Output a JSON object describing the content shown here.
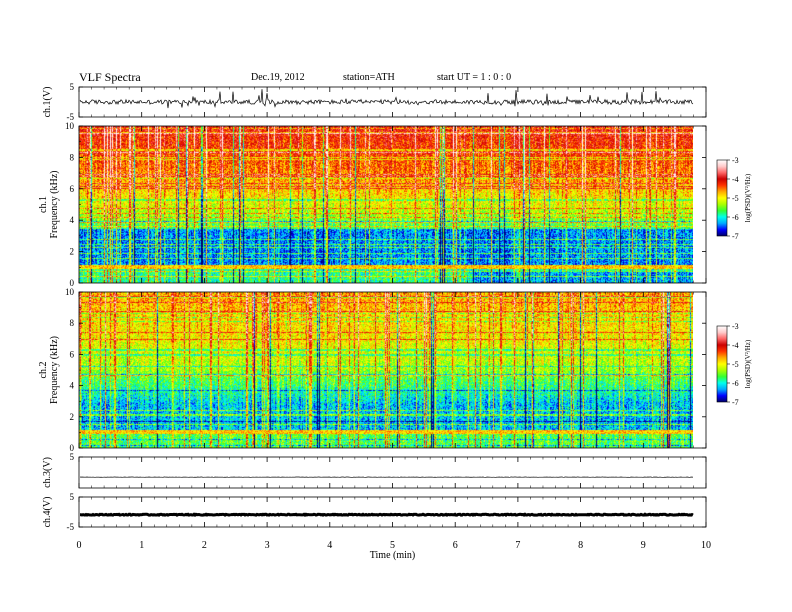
{
  "header": {
    "title": "VLF  Spectra",
    "date": "Dec.19, 2012",
    "station": "station=ATH",
    "start": "start  UT  =   1 : 0  : 0"
  },
  "colors": {
    "colormap": [
      "#000066",
      "#0000ff",
      "#00aaff",
      "#00ffee",
      "#33ff33",
      "#aaff00",
      "#ffff00",
      "#ffaa00",
      "#ff3300",
      "#cc0000",
      "#ff6666",
      "#ffcccc",
      "#ffffff"
    ]
  },
  "chart_data": [
    {
      "type": "line",
      "name": "ch1-waveform",
      "ylabel": "ch.1(V)",
      "ylim": [
        -5,
        5
      ],
      "yticks": [
        "5",
        "-5"
      ],
      "x_range_min": [
        0,
        9.8
      ],
      "approx_level_V": 0,
      "approx_amplitude_V": 1.5
    },
    {
      "type": "heatmap",
      "name": "ch1-spectrogram",
      "ylabel": "ch.1\nFrequency  (kHz)",
      "ylim": [
        0,
        10
      ],
      "yticks": [
        "0",
        "2",
        "4",
        "6",
        "8",
        "10"
      ],
      "x_range_min": [
        0,
        9.8
      ],
      "colorbar": {
        "label": "log(PSD)(V²/Hz)",
        "range": [
          -7,
          -3
        ],
        "ticks": [
          "-3",
          "-4",
          "-5",
          "-6",
          "-7"
        ]
      }
    },
    {
      "type": "heatmap",
      "name": "ch2-spectrogram",
      "ylabel": "ch.2\nFrequency  (kHz)",
      "ylim": [
        0,
        10
      ],
      "yticks": [
        "0",
        "2",
        "4",
        "6",
        "8",
        "10"
      ],
      "x_range_min": [
        0,
        9.8
      ],
      "colorbar": {
        "label": "log(PSD)(V²/Hz)",
        "range": [
          -7,
          -3
        ],
        "ticks": [
          "-3",
          "-4",
          "-5",
          "-6",
          "-7"
        ]
      }
    },
    {
      "type": "line",
      "name": "ch3-waveform",
      "ylabel": "ch.3(V)",
      "ylim": [
        -5,
        5
      ],
      "yticks": [
        "5"
      ],
      "x_range_min": [
        0,
        9.8
      ],
      "approx_level_V": -1.5,
      "approx_amplitude_V": 0.1
    },
    {
      "type": "line",
      "name": "ch4-waveform",
      "ylabel": "ch.4(V)",
      "ylim": [
        -5,
        5
      ],
      "yticks": [
        "5",
        "-5"
      ],
      "x_range_min": [
        0,
        9.8
      ],
      "approx_level_V": -0.9,
      "approx_amplitude_V": 0.3
    }
  ],
  "xaxis": {
    "label": "Time  (min)",
    "range": [
      0,
      10
    ],
    "ticks": [
      "0",
      "1",
      "2",
      "3",
      "4",
      "5",
      "6",
      "7",
      "8",
      "9",
      "10"
    ]
  }
}
